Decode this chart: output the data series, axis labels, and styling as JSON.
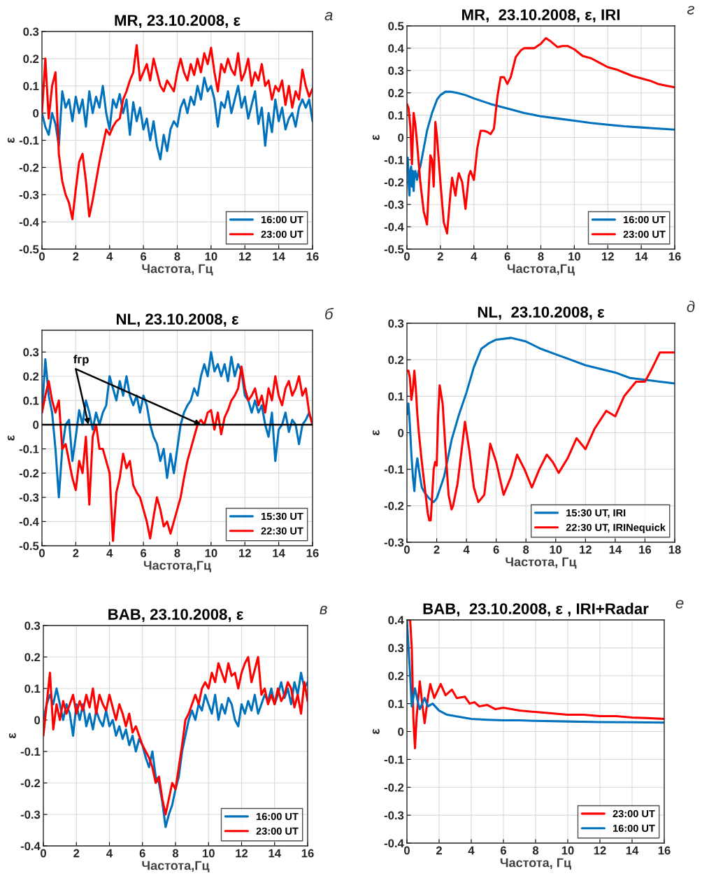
{
  "chart_data": [
    {
      "type": "line",
      "title": "MR, 23.10.2008, ε",
      "xlabel": "Частота, Гц",
      "ylabel": "ε",
      "annotations": [
        "а"
      ],
      "grid": true,
      "legend": "bottom right",
      "line_style": "solid",
      "marker": "none",
      "xlim": [
        0,
        16
      ],
      "xticks": [
        0,
        2,
        4,
        6,
        8,
        10,
        12,
        14,
        16
      ],
      "ylim": [
        -0.5,
        0.3
      ],
      "yticks": [
        -0.5,
        -0.4,
        -0.3,
        -0.2,
        -0.1,
        0,
        0.1,
        0.2,
        0.3
      ],
      "x": [
        0,
        0.2,
        0.4,
        0.6,
        0.8,
        1.0,
        1.2,
        1.4,
        1.6,
        1.8,
        2.0,
        2.2,
        2.4,
        2.6,
        2.8,
        3.0,
        3.2,
        3.4,
        3.6,
        3.8,
        4.0,
        4.2,
        4.4,
        4.6,
        4.8,
        5.0,
        5.2,
        5.4,
        5.6,
        5.8,
        6.0,
        6.2,
        6.4,
        6.6,
        6.8,
        7.0,
        7.2,
        7.4,
        7.6,
        7.8,
        8.0,
        8.2,
        8.4,
        8.6,
        8.8,
        9.0,
        9.2,
        9.4,
        9.6,
        9.8,
        10.0,
        10.2,
        10.4,
        10.6,
        10.8,
        11.0,
        11.2,
        11.4,
        11.6,
        11.8,
        12.0,
        12.2,
        12.4,
        12.6,
        12.8,
        13.0,
        13.2,
        13.4,
        13.6,
        13.8,
        14.0,
        14.2,
        14.4,
        14.6,
        14.8,
        15.0,
        15.2,
        15.4,
        15.6,
        15.8,
        16.0
      ],
      "series": [
        {
          "name": "16:00 UT",
          "color": "#0072bd",
          "values": [
            0.0,
            -0.05,
            -0.08,
            0.0,
            -0.04,
            -0.12,
            0.08,
            0.02,
            0.05,
            -0.03,
            0.06,
            0.0,
            0.05,
            -0.05,
            0.08,
            0.0,
            0.06,
            0.02,
            0.1,
            0.0,
            -0.06,
            0.05,
            0.02,
            0.07,
            0.0,
            0.05,
            -0.08,
            0.04,
            -0.03,
            0.02,
            -0.06,
            -0.02,
            -0.1,
            -0.03,
            -0.12,
            -0.17,
            -0.08,
            -0.14,
            -0.06,
            -0.03,
            -0.05,
            0.02,
            0.05,
            0.0,
            0.06,
            0.03,
            0.1,
            0.05,
            0.13,
            0.08,
            0.1,
            0.05,
            -0.05,
            0.04,
            0.02,
            0.08,
            0.0,
            0.05,
            0.1,
            0.02,
            0.06,
            -0.02,
            0.03,
            0.08,
            -0.04,
            0.02,
            -0.12,
            0.0,
            -0.07,
            0.05,
            -0.03,
            0.02,
            -0.06,
            -0.02,
            0.0,
            -0.05,
            0.02,
            0.05,
            0.02,
            0.05,
            -0.03
          ]
        },
        {
          "name": "23:00 UT",
          "color": "#ff0000",
          "values": [
            0.0,
            0.2,
            -0.02,
            0.1,
            0.15,
            -0.15,
            -0.25,
            -0.3,
            -0.33,
            -0.39,
            -0.28,
            -0.18,
            -0.15,
            -0.25,
            -0.38,
            -0.32,
            -0.25,
            -0.18,
            -0.12,
            -0.06,
            -0.08,
            -0.05,
            -0.03,
            -0.02,
            0.05,
            0.08,
            0.12,
            0.15,
            0.25,
            0.12,
            0.15,
            0.18,
            0.12,
            0.2,
            0.15,
            0.1,
            0.08,
            0.12,
            0.1,
            0.08,
            0.15,
            0.2,
            0.15,
            0.12,
            0.18,
            0.14,
            0.2,
            0.15,
            0.22,
            0.18,
            0.24,
            0.15,
            0.08,
            0.18,
            0.15,
            0.2,
            0.16,
            0.14,
            0.22,
            0.12,
            0.15,
            0.2,
            0.1,
            0.15,
            0.12,
            0.18,
            0.1,
            0.12,
            0.05,
            0.1,
            0.08,
            0.12,
            0.03,
            0.1,
            0.02,
            0.08,
            0.05,
            0.16,
            0.1,
            0.06,
            0.09
          ]
        }
      ]
    },
    {
      "type": "line",
      "title": "MR,  23.10.2008, ε, IRI",
      "xlabel": "Частота,Гц",
      "ylabel": "ε",
      "annotations": [
        "г"
      ],
      "grid": true,
      "legend": "bottom right",
      "line_style": "solid",
      "marker": "none",
      "xlim": [
        0,
        16
      ],
      "xticks": [
        0,
        2,
        4,
        6,
        8,
        10,
        12,
        14,
        16
      ],
      "ylim": [
        -0.5,
        0.5
      ],
      "yticks": [
        -0.5,
        -0.4,
        -0.3,
        -0.2,
        -0.1,
        0,
        0.1,
        0.2,
        0.3,
        0.4,
        0.5
      ],
      "series": [
        {
          "name": "16:00 UT",
          "color": "#0072bd",
          "x": [
            0,
            0.05,
            0.1,
            0.15,
            0.2,
            0.25,
            0.3,
            0.35,
            0.4,
            0.45,
            0.5,
            0.6,
            0.7,
            0.8,
            1.0,
            1.2,
            1.5,
            1.8,
            2.0,
            2.3,
            2.6,
            3.0,
            3.5,
            4,
            5,
            6,
            7,
            8,
            9,
            10,
            11,
            12,
            13,
            14,
            15,
            16
          ],
          "values": [
            -0.15,
            -0.09,
            -0.2,
            -0.26,
            -0.15,
            -0.13,
            -0.22,
            -0.15,
            -0.24,
            -0.16,
            -0.15,
            -0.19,
            -0.15,
            -0.13,
            -0.05,
            0.03,
            0.11,
            0.17,
            0.19,
            0.205,
            0.205,
            0.2,
            0.19,
            0.175,
            0.15,
            0.13,
            0.11,
            0.095,
            0.085,
            0.075,
            0.065,
            0.057,
            0.05,
            0.045,
            0.04,
            0.035
          ]
        },
        {
          "name": "23:00 UT",
          "color": "#ff0000",
          "x": [
            0,
            0.1,
            0.2,
            0.3,
            0.4,
            0.5,
            0.6,
            0.8,
            1.0,
            1.2,
            1.4,
            1.5,
            1.6,
            1.7,
            1.8,
            2.0,
            2.2,
            2.4,
            2.6,
            2.7,
            2.9,
            3.0,
            3.1,
            3.3,
            3.5,
            3.7,
            3.8,
            4.0,
            4.2,
            4.4,
            4.6,
            4.8,
            5.0,
            5.2,
            5.4,
            5.6,
            5.8,
            6.0,
            6.2,
            6.5,
            6.8,
            7.0,
            7.3,
            7.6,
            8.0,
            8.3,
            8.6,
            9.0,
            9.3,
            9.6,
            10,
            10.5,
            11,
            11.5,
            12,
            12.5,
            13,
            13.5,
            14,
            14.5,
            15,
            15.5,
            16
          ],
          "values": [
            0.15,
            0.13,
            0.05,
            -0.12,
            0.11,
            0.06,
            -0.02,
            -0.2,
            -0.33,
            -0.39,
            -0.08,
            -0.1,
            -0.22,
            0.07,
            0.0,
            -0.2,
            -0.38,
            -0.43,
            -0.25,
            -0.18,
            -0.26,
            -0.2,
            -0.16,
            -0.2,
            -0.32,
            -0.17,
            -0.15,
            -0.19,
            -0.05,
            0.03,
            0.03,
            0.025,
            0.015,
            0.04,
            0.18,
            0.27,
            0.27,
            0.24,
            0.27,
            0.36,
            0.39,
            0.4,
            0.4,
            0.4,
            0.42,
            0.445,
            0.43,
            0.405,
            0.41,
            0.41,
            0.395,
            0.365,
            0.355,
            0.335,
            0.315,
            0.305,
            0.29,
            0.275,
            0.265,
            0.255,
            0.24,
            0.232,
            0.225
          ]
        }
      ]
    },
    {
      "type": "line",
      "title": "NL, 23.10.2008, ε",
      "xlabel": "Частота,Гц",
      "ylabel": "ε",
      "annotations": [
        "б",
        {
          "text": "fгр",
          "x": 2.75,
          "y": 0
        }
      ],
      "grid": true,
      "legend": "bottom right",
      "line_style": "solid",
      "marker": "none",
      "xlim": [
        0,
        16
      ],
      "xticks": [
        0,
        2,
        4,
        6,
        8,
        10,
        12,
        14,
        16
      ],
      "ylim": [
        -0.5,
        0.39
      ],
      "yticks": [
        -0.5,
        -0.4,
        -0.3,
        -0.2,
        -0.1,
        0,
        0.1,
        0.2,
        0.3
      ],
      "ref_lines": [
        {
          "axis": "y",
          "value": 0,
          "color": "#000000",
          "line_style": "solid"
        }
      ],
      "x": [
        0,
        0.2,
        0.4,
        0.6,
        0.8,
        1.0,
        1.2,
        1.4,
        1.6,
        1.8,
        2.0,
        2.2,
        2.4,
        2.6,
        2.8,
        3.0,
        3.2,
        3.4,
        3.6,
        3.8,
        4.0,
        4.2,
        4.4,
        4.6,
        4.8,
        5.0,
        5.2,
        5.4,
        5.6,
        5.8,
        6.0,
        6.2,
        6.4,
        6.6,
        6.8,
        7.0,
        7.2,
        7.4,
        7.6,
        7.8,
        8.0,
        8.2,
        8.4,
        8.6,
        8.8,
        9.0,
        9.2,
        9.4,
        9.6,
        9.8,
        10.0,
        10.2,
        10.4,
        10.6,
        10.8,
        11.0,
        11.2,
        11.4,
        11.6,
        11.8,
        12.0,
        12.2,
        12.4,
        12.6,
        12.8,
        13.0,
        13.2,
        13.4,
        13.6,
        13.8,
        14.0,
        14.2,
        14.4,
        14.6,
        14.8,
        15.0,
        15.2,
        15.4,
        15.6,
        15.8,
        16.0
      ],
      "series": [
        {
          "name": "15:30 UT",
          "color": "#0072bd",
          "values": [
            0.05,
            0.27,
            0.12,
            0.05,
            -0.1,
            -0.3,
            -0.1,
            0.0,
            0.02,
            -0.15,
            -0.05,
            0.06,
            0.0,
            0.1,
            0.05,
            -0.02,
            0.05,
            0.0,
            0.05,
            0.08,
            0.2,
            0.15,
            0.1,
            0.18,
            0.12,
            0.2,
            0.12,
            0.08,
            0.12,
            0.05,
            0.12,
            0.08,
            0.0,
            -0.05,
            -0.08,
            -0.15,
            -0.1,
            -0.22,
            -0.12,
            -0.2,
            -0.1,
            0.0,
            0.05,
            0.08,
            0.1,
            0.15,
            0.12,
            0.2,
            0.25,
            0.2,
            0.3,
            0.22,
            0.25,
            0.2,
            0.25,
            0.18,
            0.28,
            0.2,
            0.25,
            0.22,
            0.12,
            0.1,
            0.05,
            0.1,
            0.05,
            0.08,
            0.0,
            -0.05,
            0.05,
            -0.15,
            -0.02,
            0.0,
            0.05,
            -0.03,
            0.02,
            0.0,
            -0.08,
            0.0,
            0.02,
            0.05,
            0.0
          ]
        },
        {
          "name": "22:30 UT",
          "color": "#ff0000",
          "values": [
            0.05,
            0.12,
            0.18,
            0.1,
            0.05,
            0.1,
            -0.1,
            -0.08,
            -0.15,
            -0.22,
            -0.27,
            -0.15,
            -0.2,
            -0.05,
            -0.33,
            -0.05,
            0.0,
            -0.1,
            -0.1,
            -0.15,
            -0.2,
            -0.48,
            -0.28,
            -0.22,
            -0.12,
            -0.18,
            -0.15,
            -0.25,
            -0.28,
            -0.3,
            -0.35,
            -0.4,
            -0.47,
            -0.38,
            -0.3,
            -0.35,
            -0.42,
            -0.4,
            -0.45,
            -0.4,
            -0.35,
            -0.3,
            -0.22,
            -0.15,
            -0.1,
            -0.05,
            0.0,
            0.02,
            0.0,
            0.05,
            0.06,
            -0.02,
            0.05,
            -0.04,
            0.03,
            0.06,
            0.1,
            0.12,
            0.15,
            0.24,
            0.15,
            0.1,
            0.12,
            0.15,
            0.08,
            0.12,
            0.05,
            0.15,
            0.1,
            0.2,
            0.12,
            0.08,
            0.15,
            0.18,
            0.12,
            0.15,
            0.2,
            0.12,
            0.15,
            0.05,
            0.0
          ]
        }
      ]
    },
    {
      "type": "line",
      "title": "NL,  23.10.2008, ε",
      "xlabel": "Частота, Гц",
      "ylabel": "ε",
      "annotations": [
        "д"
      ],
      "grid": true,
      "legend": "bottom right",
      "line_style": "solid",
      "marker": "none",
      "xlim": [
        0,
        18
      ],
      "xticks": [
        0,
        2,
        4,
        6,
        8,
        10,
        12,
        14,
        16,
        18
      ],
      "ylim": [
        -0.3,
        0.3
      ],
      "yticks": [
        -0.3,
        -0.2,
        -0.1,
        0,
        0.1,
        0.2,
        0.3
      ],
      "series": [
        {
          "name": "15:30 UT, IRI",
          "color": "#0072bd",
          "x": [
            0,
            0.1,
            0.2,
            0.3,
            0.4,
            0.5,
            0.6,
            0.7,
            0.8,
            1.0,
            1.2,
            1.5,
            1.8,
            2.0,
            2.5,
            3,
            3.5,
            4,
            4.5,
            5,
            5.5,
            6,
            7,
            8,
            9,
            10,
            11,
            12,
            13,
            14,
            15,
            16,
            17,
            18
          ],
          "values": [
            0.05,
            0.08,
            0.02,
            -0.06,
            -0.12,
            -0.16,
            -0.1,
            -0.07,
            -0.1,
            -0.15,
            -0.165,
            -0.18,
            -0.19,
            -0.18,
            -0.12,
            -0.02,
            0.05,
            0.11,
            0.18,
            0.23,
            0.245,
            0.255,
            0.26,
            0.25,
            0.23,
            0.215,
            0.2,
            0.185,
            0.175,
            0.165,
            0.15,
            0.145,
            0.14,
            0.135
          ]
        },
        {
          "name": "22:30 UT, IRINequick",
          "color": "#ff0000",
          "x": [
            0,
            0.1,
            0.2,
            0.3,
            0.4,
            0.5,
            0.6,
            0.7,
            0.8,
            1.0,
            1.2,
            1.4,
            1.5,
            1.6,
            1.8,
            1.9,
            2.0,
            2.1,
            2.2,
            2.4,
            2.6,
            2.8,
            3.0,
            3.1,
            3.4,
            3.7,
            3.9,
            4.2,
            4.5,
            4.8,
            5.2,
            5.6,
            6.0,
            6.5,
            7.0,
            7.4,
            7.9,
            8.4,
            8.9,
            9.4,
            9.8,
            10.2,
            10.8,
            11.4,
            12.0,
            12.6,
            13.4,
            14.0,
            14.6,
            15.4,
            16.0,
            16.4,
            17.0,
            17.5,
            18
          ],
          "values": [
            0.17,
            0.17,
            0.15,
            0.09,
            0.12,
            0.17,
            0.12,
            0.05,
            0.0,
            -0.08,
            -0.15,
            -0.22,
            -0.24,
            -0.24,
            -0.1,
            -0.08,
            -0.09,
            0.05,
            0.13,
            0.08,
            -0.05,
            -0.17,
            -0.21,
            -0.2,
            -0.14,
            -0.04,
            0.03,
            -0.05,
            -0.15,
            -0.19,
            -0.17,
            -0.03,
            -0.08,
            -0.17,
            -0.12,
            -0.06,
            -0.1,
            -0.15,
            -0.1,
            -0.06,
            -0.08,
            -0.11,
            -0.07,
            -0.015,
            -0.045,
            0.01,
            0.06,
            0.045,
            0.1,
            0.14,
            0.14,
            0.17,
            0.22,
            0.22,
            0.22
          ]
        }
      ]
    },
    {
      "type": "line",
      "title": "BAB, 23.10.2008, ε",
      "xlabel": "Частота,Гц",
      "ylabel": "ε",
      "annotations": [
        "в"
      ],
      "grid": true,
      "legend": "bottom right",
      "line_style": "solid",
      "marker": "none",
      "xlim": [
        0,
        16
      ],
      "xticks": [
        0,
        2,
        4,
        6,
        8,
        10,
        12,
        14,
        16
      ],
      "ylim": [
        -0.4,
        0.3
      ],
      "yticks": [
        -0.4,
        -0.3,
        -0.2,
        -0.1,
        0,
        0.1,
        0.2,
        0.3
      ],
      "x": [
        0,
        0.2,
        0.4,
        0.6,
        0.8,
        1.0,
        1.2,
        1.4,
        1.6,
        1.8,
        2.0,
        2.2,
        2.4,
        2.6,
        2.8,
        3.0,
        3.2,
        3.4,
        3.6,
        3.8,
        4.0,
        4.2,
        4.4,
        4.6,
        4.8,
        5.0,
        5.2,
        5.4,
        5.6,
        5.8,
        6.0,
        6.2,
        6.4,
        6.6,
        6.8,
        7.0,
        7.2,
        7.4,
        7.6,
        7.8,
        8.0,
        8.2,
        8.4,
        8.6,
        8.8,
        9.0,
        9.2,
        9.4,
        9.6,
        9.8,
        10.0,
        10.2,
        10.4,
        10.6,
        10.8,
        11.0,
        11.2,
        11.4,
        11.6,
        11.8,
        12.0,
        12.2,
        12.4,
        12.6,
        12.8,
        13.0,
        13.2,
        13.4,
        13.6,
        13.8,
        14.0,
        14.2,
        14.4,
        14.6,
        14.8,
        15.0,
        15.2,
        15.4,
        15.6,
        15.8,
        16.0
      ],
      "series": [
        {
          "name": "16:00 UT",
          "color": "#0072bd",
          "values": [
            0.0,
            0.05,
            0.08,
            0.05,
            0.1,
            0.05,
            0.0,
            0.05,
            0.02,
            -0.05,
            0.05,
            0.0,
            0.05,
            -0.02,
            0.02,
            -0.03,
            0.03,
            0.0,
            -0.02,
            0.03,
            -0.02,
            0.0,
            -0.05,
            -0.02,
            -0.06,
            -0.03,
            -0.08,
            -0.05,
            -0.1,
            -0.06,
            -0.08,
            -0.12,
            -0.15,
            -0.1,
            -0.18,
            -0.2,
            -0.26,
            -0.34,
            -0.3,
            -0.27,
            -0.22,
            -0.18,
            -0.1,
            -0.05,
            0.0,
            0.03,
            0.0,
            0.05,
            0.03,
            0.08,
            0.05,
            0.02,
            0.08,
            0.0,
            0.05,
            0.02,
            0.07,
            0.05,
            0.0,
            -0.02,
            0.05,
            0.02,
            0.06,
            0.03,
            0.08,
            0.02,
            0.05,
            0.08,
            0.06,
            0.1,
            0.05,
            0.08,
            0.12,
            0.07,
            0.1,
            0.05,
            0.12,
            0.08,
            0.15,
            0.1,
            0.12
          ]
        },
        {
          "name": "23:00 UT",
          "color": "#ff0000",
          "values": [
            -0.05,
            0.05,
            0.15,
            -0.03,
            0.05,
            0.0,
            0.06,
            0.02,
            0.05,
            0.08,
            0.02,
            0.06,
            0.03,
            0.08,
            0.04,
            0.1,
            0.02,
            0.08,
            0.05,
            0.03,
            0.08,
            0.04,
            0.0,
            0.05,
            0.02,
            -0.02,
            0.02,
            -0.04,
            -0.02,
            -0.05,
            -0.08,
            -0.1,
            -0.12,
            -0.15,
            -0.2,
            -0.18,
            -0.25,
            -0.3,
            -0.25,
            -0.2,
            -0.22,
            -0.15,
            -0.08,
            0.0,
            0.02,
            0.05,
            0.08,
            0.05,
            0.1,
            0.12,
            0.1,
            0.15,
            0.12,
            0.18,
            0.15,
            0.12,
            0.18,
            0.14,
            0.15,
            0.1,
            0.15,
            0.18,
            0.2,
            0.12,
            0.16,
            0.2,
            0.08,
            0.1,
            0.05,
            0.08,
            0.05,
            0.1,
            0.06,
            0.08,
            0.12,
            0.1,
            0.04,
            0.08,
            0.02,
            0.12,
            0.06
          ]
        }
      ]
    },
    {
      "type": "line",
      "title": "BAB,  23.10.2008, ε , IRI+Radar",
      "xlabel": "Частота, Гц",
      "ylabel": "ε",
      "annotations": [
        "е"
      ],
      "grid": true,
      "legend": "bottom right",
      "line_style": "solid",
      "marker": "none",
      "xlim": [
        0,
        16
      ],
      "xticks": [
        0,
        2,
        4,
        6,
        8,
        10,
        12,
        14,
        16
      ],
      "ylim": [
        -0.4,
        0.4
      ],
      "yticks": [
        -0.4,
        -0.3,
        -0.2,
        -0.1,
        0,
        0.1,
        0.2,
        0.3,
        0.4
      ],
      "series": [
        {
          "name": "23:00 UT",
          "color": "#ff0000",
          "x": [
            0,
            0.1,
            0.2,
            0.3,
            0.4,
            0.5,
            0.6,
            0.8,
            0.95,
            1.1,
            1.3,
            1.45,
            1.7,
            2.1,
            2.4,
            2.8,
            3.1,
            3.6,
            3.9,
            4.2,
            4.5,
            5.0,
            5.5,
            6,
            7,
            8,
            9,
            10,
            11,
            12,
            13,
            14,
            15,
            16
          ],
          "values": [
            0.4,
            0.4,
            0.4,
            0.3,
            0.05,
            -0.06,
            0.05,
            0.18,
            0.1,
            0.03,
            0.12,
            0.17,
            0.12,
            0.17,
            0.13,
            0.15,
            0.12,
            0.125,
            0.1,
            0.105,
            0.09,
            0.095,
            0.08,
            0.085,
            0.075,
            0.07,
            0.065,
            0.06,
            0.06,
            0.055,
            0.055,
            0.05,
            0.048,
            0.045
          ]
        },
        {
          "name": "16:00 UT",
          "color": "#0072bd",
          "x": [
            0,
            0.1,
            0.2,
            0.3,
            0.5,
            0.7,
            0.8,
            1.1,
            1.3,
            1.6,
            2,
            2.5,
            3,
            3.5,
            4,
            5,
            6,
            7,
            8,
            10,
            12,
            14,
            16
          ],
          "values": [
            0.4,
            0.3,
            0.2,
            0.09,
            0.155,
            0.1,
            0.08,
            0.12,
            0.09,
            0.1,
            0.075,
            0.06,
            0.055,
            0.05,
            0.045,
            0.042,
            0.04,
            0.04,
            0.038,
            0.036,
            0.034,
            0.033,
            0.032
          ]
        }
      ]
    }
  ]
}
